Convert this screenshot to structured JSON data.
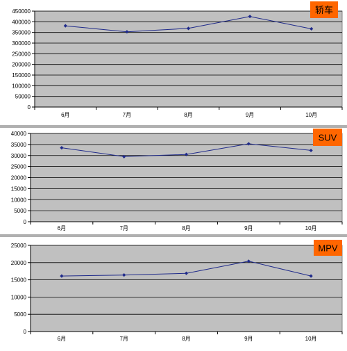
{
  "colors": {
    "plot_bg": "#c0c0c0",
    "grid": "#000000",
    "line": "#1f2a8a",
    "badge": "#ff6600",
    "separator": "#b0b0b0"
  },
  "chart_data": [
    {
      "type": "line",
      "badge": "轿车",
      "categories": [
        "6月",
        "7月",
        "8月",
        "9月",
        "10月"
      ],
      "series": [
        {
          "values": [
            381000,
            353000,
            369000,
            425000,
            367000
          ]
        }
      ],
      "ylim": [
        0,
        450000
      ],
      "yticks": [
        0,
        50000,
        100000,
        150000,
        200000,
        250000,
        300000,
        350000,
        400000,
        450000
      ],
      "grid": true
    },
    {
      "type": "line",
      "badge": "SUV",
      "categories": [
        "6月",
        "7月",
        "8月",
        "9月",
        "10月"
      ],
      "series": [
        {
          "values": [
            33500,
            29500,
            30500,
            35300,
            32300
          ]
        }
      ],
      "ylim": [
        0,
        40000
      ],
      "yticks": [
        0,
        5000,
        10000,
        15000,
        20000,
        25000,
        30000,
        35000,
        40000
      ],
      "grid": true
    },
    {
      "type": "line",
      "badge": "MPV",
      "categories": [
        "6月",
        "7月",
        "8月",
        "9月",
        "10月"
      ],
      "series": [
        {
          "values": [
            16100,
            16400,
            16900,
            20400,
            16100
          ]
        }
      ],
      "ylim": [
        0,
        25000
      ],
      "yticks": [
        0,
        5000,
        10000,
        15000,
        20000,
        25000
      ],
      "grid": true
    }
  ]
}
